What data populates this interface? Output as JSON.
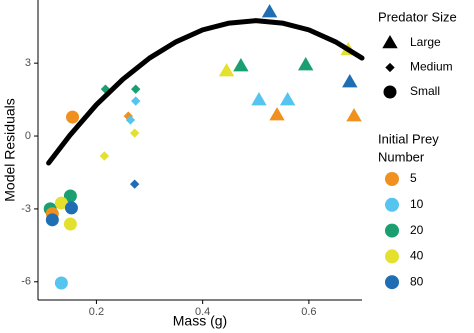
{
  "chart_data": {
    "type": "scatter",
    "x_label": "Mass (g)",
    "y_label": "Model Residuals",
    "xlim": [
      0.09,
      0.7
    ],
    "ylim": [
      -6.75,
      5.6
    ],
    "xticks": [
      0.2,
      0.4,
      0.6
    ],
    "yticks": [
      -6,
      -3,
      0,
      3
    ],
    "grid": false,
    "shape_legend_title": "Predator Size",
    "color_legend_title": [
      "Initial Prey",
      "Number"
    ],
    "prey_colors": [
      {
        "value": 5,
        "color": "#f0901e"
      },
      {
        "value": 10,
        "color": "#55c5f0"
      },
      {
        "value": 20,
        "color": "#1aa070"
      },
      {
        "value": 40,
        "color": "#e4e02e"
      },
      {
        "value": 80,
        "color": "#1f6db3"
      }
    ],
    "series": [
      {
        "name": "Large",
        "shape": "triangle",
        "x": [
          0.526,
          0.472,
          0.445,
          0.506,
          0.56,
          0.54,
          0.594,
          0.674,
          0.677,
          0.685
        ],
        "y": [
          5.1,
          2.88,
          2.67,
          1.48,
          1.48,
          0.86,
          2.92,
          3.54,
          2.22,
          0.82
        ],
        "prey": [
          80,
          20,
          40,
          10,
          10,
          5,
          20,
          40,
          80,
          5
        ]
      },
      {
        "name": "Medium",
        "shape": "diamond",
        "x": [
          0.217,
          0.274,
          0.274,
          0.26,
          0.264,
          0.272,
          0.215,
          0.272
        ],
        "y": [
          1.93,
          1.93,
          1.44,
          0.82,
          0.66,
          0.12,
          -0.82,
          -1.98
        ],
        "prey": [
          20,
          20,
          10,
          5,
          10,
          40,
          40,
          80
        ]
      },
      {
        "name": "Small",
        "shape": "circle",
        "x": [
          0.155,
          0.113,
          0.151,
          0.134,
          0.151,
          0.117,
          0.117,
          0.153,
          0.134
        ],
        "y": [
          0.78,
          -3.0,
          -2.47,
          -2.76,
          -3.62,
          -3.2,
          -3.45,
          -2.96,
          -6.05
        ],
        "prey": [
          5,
          20,
          20,
          40,
          40,
          5,
          80,
          80,
          10
        ]
      }
    ],
    "curve": {
      "color": "#000000",
      "x": [
        0.11,
        0.15,
        0.2,
        0.25,
        0.3,
        0.35,
        0.4,
        0.45,
        0.5,
        0.55,
        0.6,
        0.65,
        0.7
      ],
      "y": [
        -1.11,
        0.03,
        1.29,
        2.34,
        3.21,
        3.88,
        4.37,
        4.65,
        4.75,
        4.65,
        4.37,
        3.88,
        3.21
      ]
    }
  }
}
